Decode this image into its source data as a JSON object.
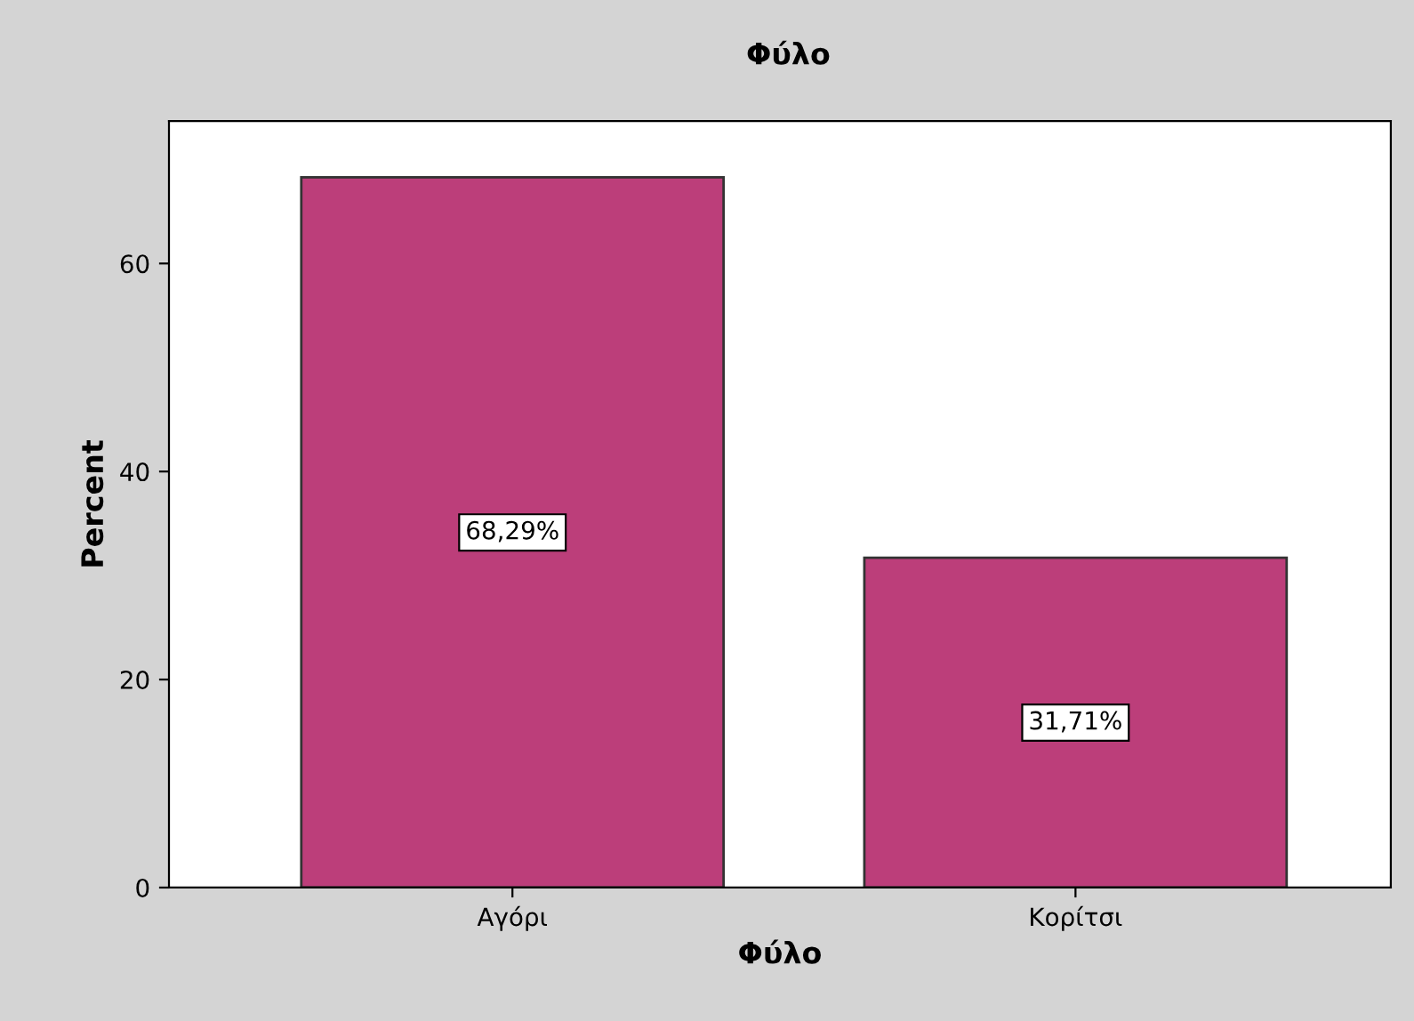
{
  "chart_data": {
    "type": "bar",
    "title": "Φύλο",
    "xlabel": "Φύλο",
    "ylabel": "Percent",
    "categories": [
      "Αγόρι",
      "Κορίτσι"
    ],
    "values": [
      68.29,
      31.71
    ],
    "value_labels": [
      "68,29%",
      "31,71%"
    ],
    "color": "#bc3e7a",
    "ylim": [
      0,
      73.7
    ],
    "yticks": [
      0,
      20,
      40,
      60
    ],
    "grid": false,
    "legend": false
  }
}
